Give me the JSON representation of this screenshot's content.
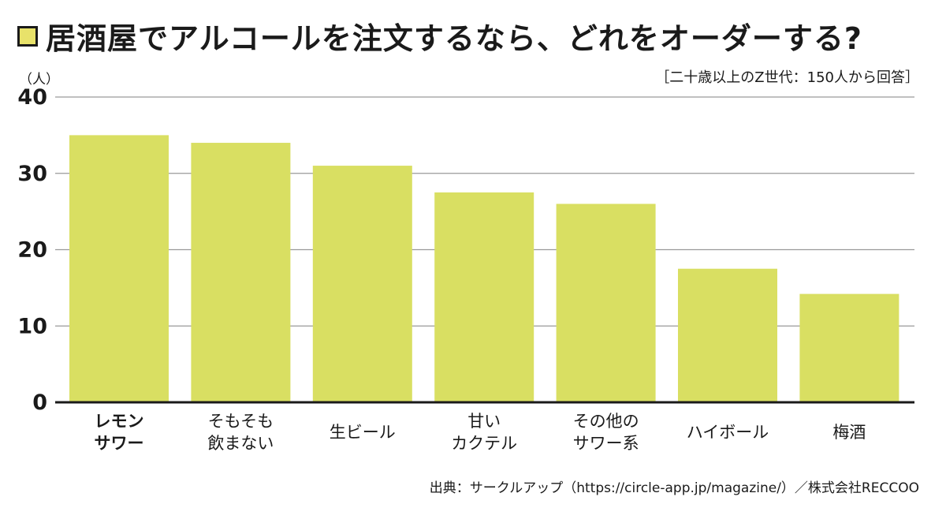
{
  "title": "居酒屋でアルコールを注文するなら、どれをオーダーする?",
  "note": "［二十歳以上のZ世代：150人から回答］",
  "source": "出典：サークルアップ（https://circle-app.jp/magazine/）／株式会社RECCOO",
  "colors": {
    "bar": "#d9df62",
    "grid": "#9a9a9a",
    "axis": "#1a1a1a",
    "text": "#1a1a1a"
  },
  "chart_data": {
    "type": "bar",
    "categories": [
      "レモン\nサワー",
      "そもそも\n飲まない",
      "生ビール",
      "甘い\nカクテル",
      "その他の\nサワー系",
      "ハイボール",
      "梅酒"
    ],
    "highlight_index": 0,
    "values": [
      35,
      34,
      31,
      27.5,
      26,
      17.5,
      14.2
    ],
    "ylabel": "（人）",
    "ylim": [
      0,
      40
    ],
    "yticks": [
      0,
      10,
      20,
      30,
      40
    ],
    "grid": true
  }
}
